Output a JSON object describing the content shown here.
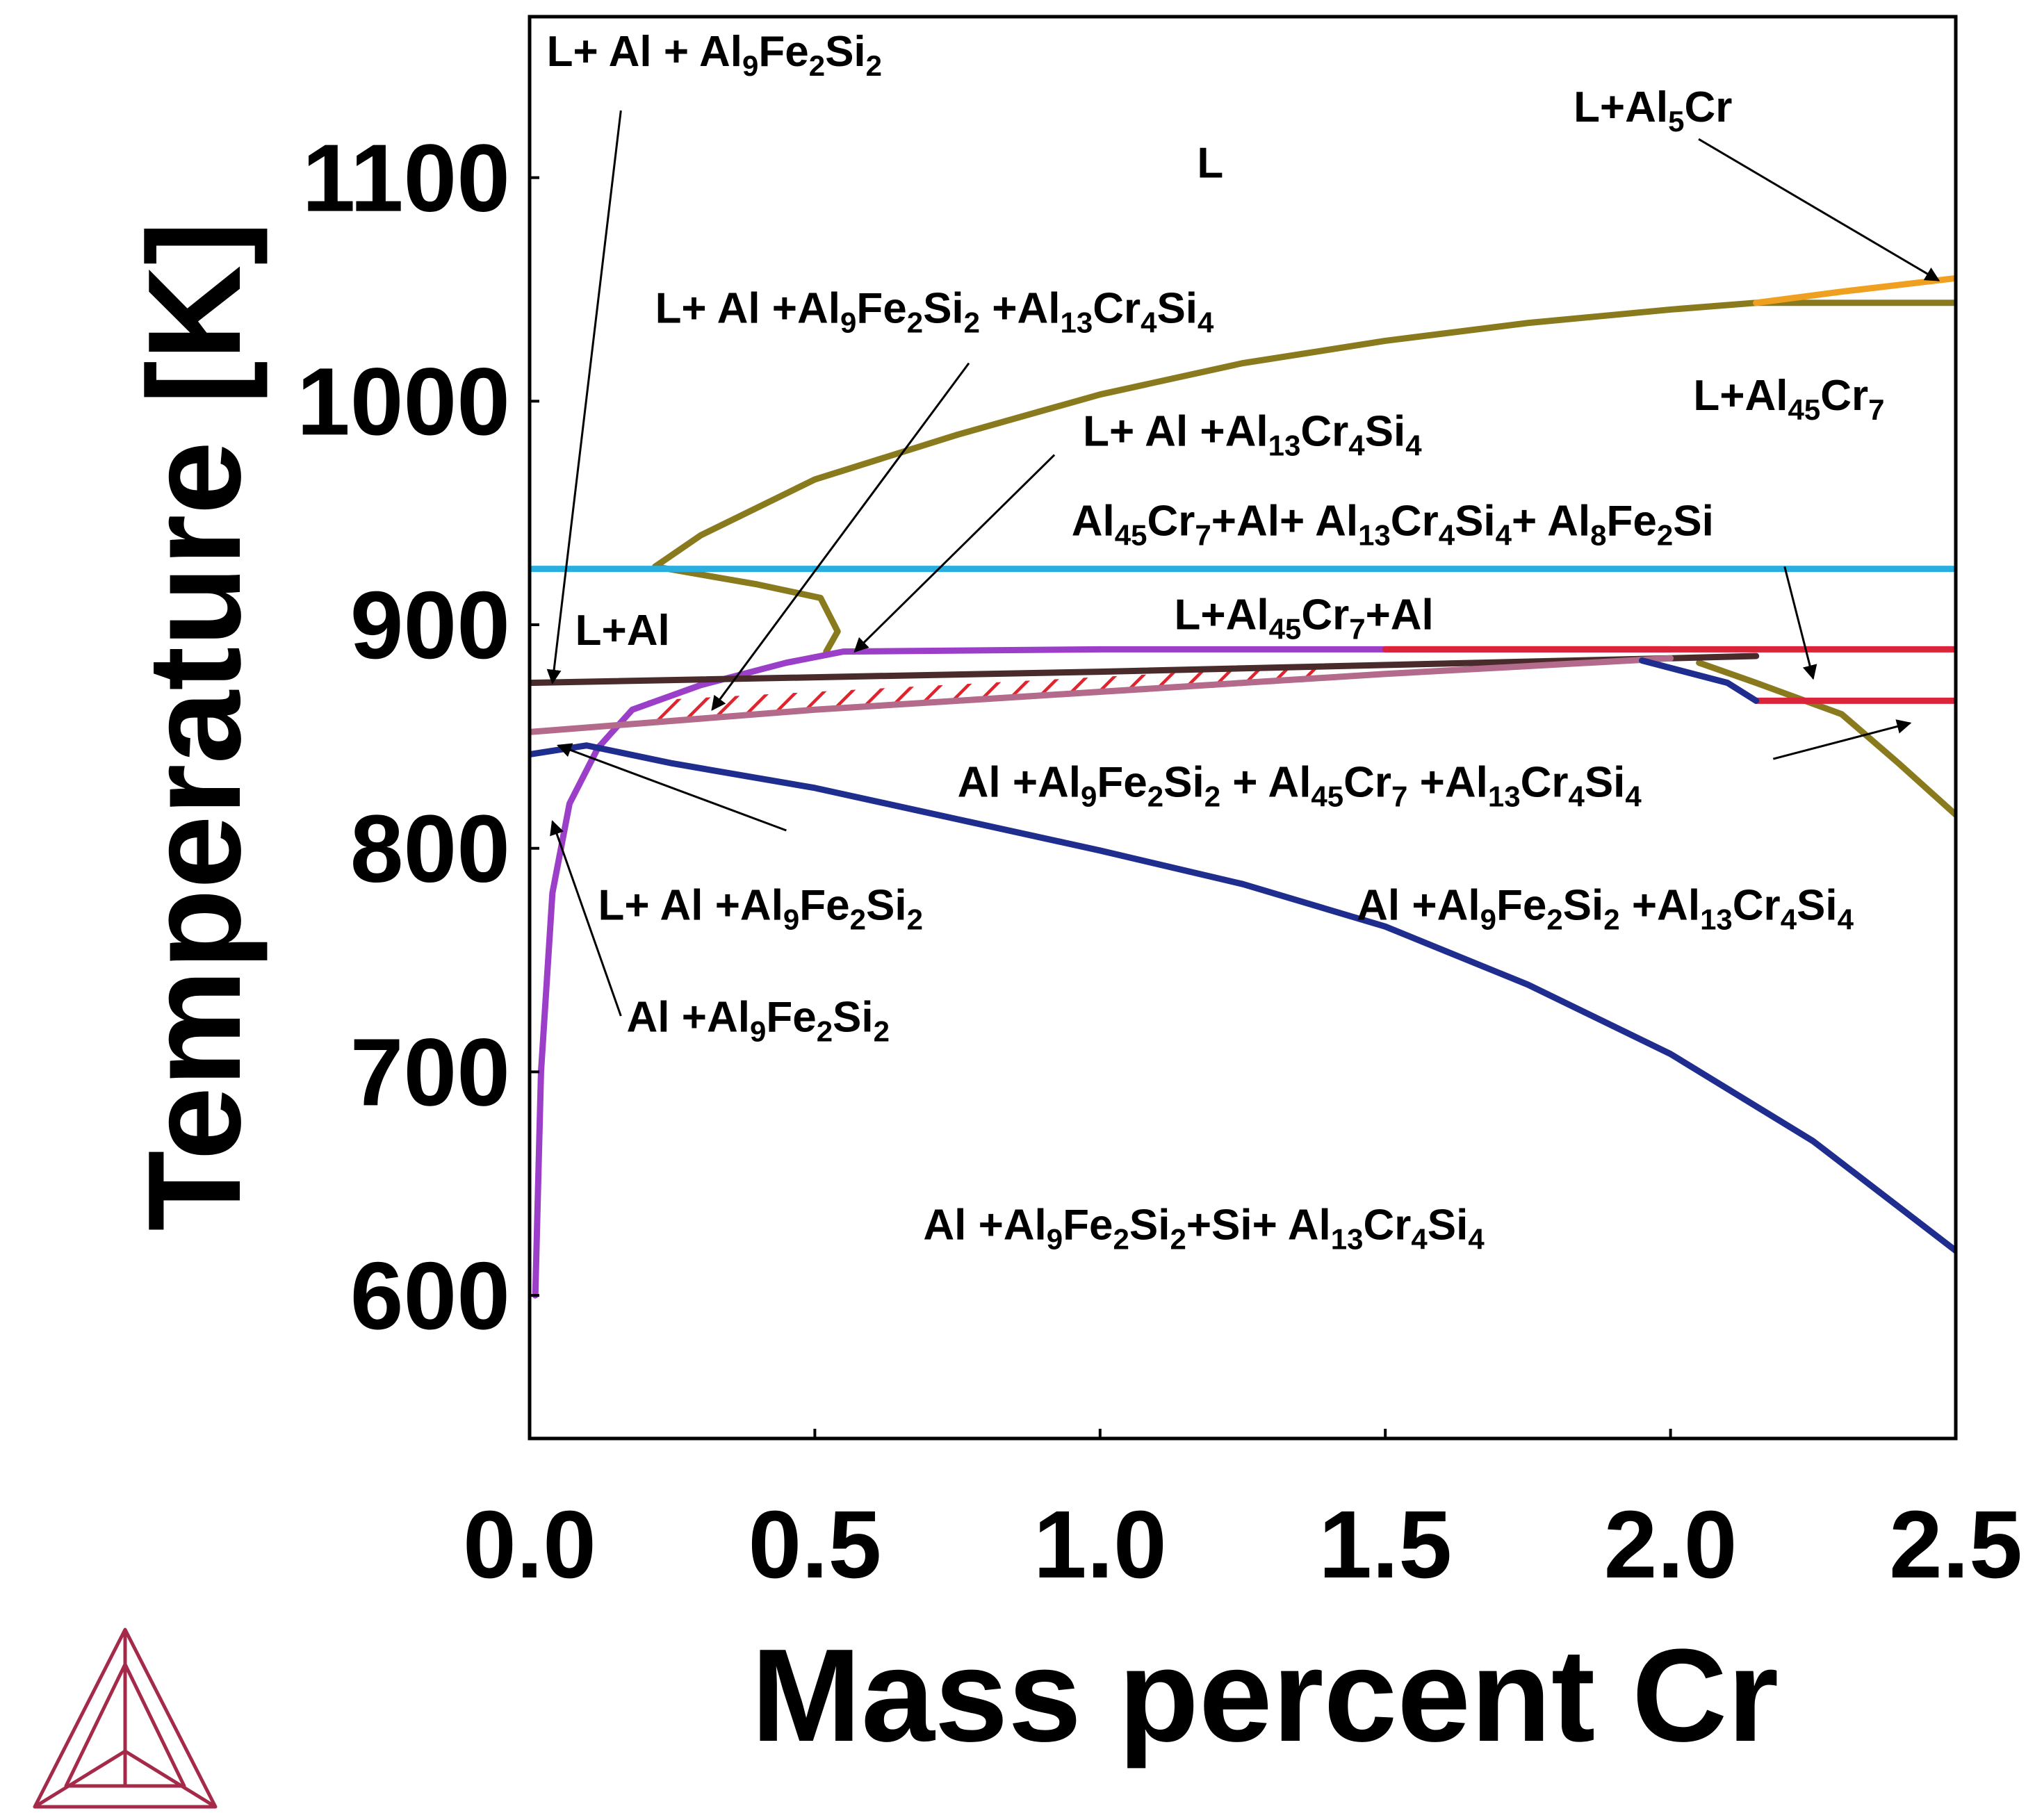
{
  "chart_data": {
    "type": "line",
    "title": "",
    "xlabel": "Mass percent Cr",
    "ylabel": "Temperature [K]",
    "xlim": [
      0.0,
      2.5
    ],
    "ylim": [
      536,
      1172
    ],
    "xticks": [
      "0.0",
      "0.5",
      "1.0",
      "1.5",
      "2.0",
      "2.5"
    ],
    "yticks": [
      "600",
      "700",
      "800",
      "900",
      "1000",
      "1100"
    ],
    "grid": false,
    "legend": "none",
    "series": [
      {
        "name": "liquidus-L-Al45Cr7",
        "color": "#8a7a1e",
        "points": [
          [
            0.22,
            926
          ],
          [
            0.3,
            940
          ],
          [
            0.5,
            965
          ],
          [
            0.75,
            985
          ],
          [
            1.0,
            1003
          ],
          [
            1.25,
            1017
          ],
          [
            1.5,
            1027
          ],
          [
            1.75,
            1035
          ],
          [
            2.0,
            1041
          ],
          [
            2.15,
            1044
          ],
          [
            2.5,
            1044
          ]
        ]
      },
      {
        "name": "liquidus-L-Al5Cr",
        "color": "#f0a020",
        "points": [
          [
            2.15,
            1044
          ],
          [
            2.3,
            1049
          ],
          [
            2.5,
            1055
          ]
        ]
      },
      {
        "name": "liquidus-lower-branch",
        "color": "#8a7a1e",
        "points": [
          [
            0.22,
            926
          ],
          [
            0.4,
            918
          ],
          [
            0.51,
            912
          ],
          [
            0.54,
            897
          ],
          [
            0.52,
            888
          ]
        ]
      },
      {
        "name": "solvus-Al45Cr7-right",
        "color": "#8a7a1e",
        "points": [
          [
            2.05,
            883
          ],
          [
            2.15,
            874
          ],
          [
            2.3,
            860
          ],
          [
            2.4,
            838
          ],
          [
            2.5,
            815
          ]
        ]
      },
      {
        "name": "isotherm-Al8Fe2Si",
        "color": "#29aee0",
        "points": [
          [
            0.0,
            925
          ],
          [
            2.5,
            925
          ]
        ]
      },
      {
        "name": "purple-boundary",
        "color": "#9b3ec8",
        "points": [
          [
            0.01,
            600
          ],
          [
            0.02,
            700
          ],
          [
            0.04,
            780
          ],
          [
            0.07,
            820
          ],
          [
            0.12,
            845
          ],
          [
            0.18,
            862
          ],
          [
            0.3,
            873
          ],
          [
            0.45,
            883
          ],
          [
            0.55,
            888
          ],
          [
            1.0,
            889
          ],
          [
            1.5,
            889
          ],
          [
            2.0,
            889
          ]
        ]
      },
      {
        "name": "red-upper",
        "color": "#d9243a",
        "points": [
          [
            1.5,
            889
          ],
          [
            2.5,
            889
          ]
        ]
      },
      {
        "name": "red-lower",
        "color": "#d9243a",
        "points": [
          [
            2.15,
            866
          ],
          [
            2.5,
            866
          ]
        ]
      },
      {
        "name": "brown-line",
        "color": "#4a2b2b",
        "points": [
          [
            0.0,
            874
          ],
          [
            1.0,
            879
          ],
          [
            2.0,
            885
          ],
          [
            2.15,
            886
          ]
        ]
      },
      {
        "name": "pink-line",
        "color": "#b46a8a",
        "points": [
          [
            0.0,
            852
          ],
          [
            0.5,
            862
          ],
          [
            1.0,
            870
          ],
          [
            1.5,
            878
          ],
          [
            2.0,
            885
          ]
        ]
      },
      {
        "name": "blue-solvus",
        "color": "#1e2d8e",
        "points": [
          [
            0.0,
            842
          ],
          [
            0.1,
            846
          ],
          [
            0.25,
            838
          ],
          [
            0.5,
            827
          ],
          [
            0.75,
            813
          ],
          [
            1.0,
            799
          ],
          [
            1.25,
            784
          ],
          [
            1.5,
            765
          ],
          [
            1.75,
            739
          ],
          [
            2.0,
            708
          ],
          [
            2.25,
            669
          ],
          [
            2.5,
            620
          ]
        ]
      },
      {
        "name": "blue-upper-right",
        "color": "#1e2d8e",
        "points": [
          [
            1.95,
            884
          ],
          [
            2.1,
            874
          ],
          [
            2.15,
            866
          ]
        ]
      }
    ],
    "hatched_region": {
      "color": "#e0242e",
      "x_range": [
        0.2,
        1.4
      ],
      "y_range": [
        856,
        882
      ]
    },
    "annotations": [
      {
        "id": "L",
        "parts": [
          [
            "L",
            ""
          ]
        ],
        "x": 1.17,
        "y": 1100
      },
      {
        "id": "l-al-al9fe2si2-top",
        "parts": [
          [
            "L+ Al + Al",
            ""
          ],
          [
            "9",
            "sub"
          ],
          [
            "Fe",
            ""
          ],
          [
            "2",
            "sub"
          ],
          [
            "Si",
            ""
          ],
          [
            "2",
            "sub"
          ]
        ],
        "x": 0.03,
        "y": 1150,
        "arrow_to": [
          0.04,
          874
        ]
      },
      {
        "id": "l-al5cr",
        "parts": [
          [
            "L+Al",
            ""
          ],
          [
            "5",
            "sub"
          ],
          [
            "Cr",
            ""
          ]
        ],
        "x": 1.83,
        "y": 1125,
        "arrow_to": [
          2.47,
          1054
        ]
      },
      {
        "id": "l-al-al9fe2si2-al13cr4si4",
        "parts": [
          [
            "L+ Al +Al",
            ""
          ],
          [
            "9",
            "sub"
          ],
          [
            "Fe",
            ""
          ],
          [
            "2",
            "sub"
          ],
          [
            "Si",
            ""
          ],
          [
            "2",
            "sub"
          ],
          [
            " +Al",
            ""
          ],
          [
            "13",
            "sub"
          ],
          [
            "Cr",
            ""
          ],
          [
            "4",
            "sub"
          ],
          [
            "Si",
            ""
          ],
          [
            "4",
            "sub"
          ]
        ],
        "x": 0.22,
        "y": 1035,
        "arrow_to": [
          0.32,
          862
        ]
      },
      {
        "id": "l-al45cr7",
        "parts": [
          [
            "L+Al",
            ""
          ],
          [
            "45",
            "sub"
          ],
          [
            "Cr",
            ""
          ],
          [
            "7",
            "sub"
          ]
        ],
        "x": 2.04,
        "y": 996
      },
      {
        "id": "l-al-al13cr4si4",
        "parts": [
          [
            "L+ Al +Al",
            ""
          ],
          [
            "13",
            "sub"
          ],
          [
            "Cr",
            ""
          ],
          [
            "4",
            "sub"
          ],
          [
            "Si",
            ""
          ],
          [
            "4",
            "sub"
          ]
        ],
        "x": 0.97,
        "y": 980,
        "arrow_to": [
          0.57,
          888
        ]
      },
      {
        "id": "al45cr7-al-al13cr4si4-al8fe2si",
        "parts": [
          [
            "Al",
            ""
          ],
          [
            "45",
            "sub"
          ],
          [
            "Cr",
            ""
          ],
          [
            "7",
            "sub"
          ],
          [
            "+Al+ Al",
            ""
          ],
          [
            "13",
            "sub"
          ],
          [
            "Cr",
            ""
          ],
          [
            "4",
            "sub"
          ],
          [
            "Si",
            ""
          ],
          [
            "4",
            "sub"
          ],
          [
            "+ Al",
            ""
          ],
          [
            "8",
            "sub"
          ],
          [
            "Fe",
            ""
          ],
          [
            "2",
            "sub"
          ],
          [
            "Si",
            ""
          ]
        ],
        "x": 0.95,
        "y": 940,
        "arrow_to": [
          2.25,
          876
        ]
      },
      {
        "id": "l-al",
        "parts": [
          [
            "L+Al",
            ""
          ]
        ],
        "x": 0.08,
        "y": 891
      },
      {
        "id": "l-al45cr7-al",
        "parts": [
          [
            "L+Al",
            ""
          ],
          [
            "45",
            "sub"
          ],
          [
            "Cr",
            ""
          ],
          [
            "7",
            "sub"
          ],
          [
            "+Al",
            ""
          ]
        ],
        "x": 1.13,
        "y": 898
      },
      {
        "id": "al-al9fe2si2-al45cr7-al13cr4si4",
        "parts": [
          [
            "Al +Al",
            ""
          ],
          [
            "9",
            "sub"
          ],
          [
            "Fe",
            ""
          ],
          [
            "2",
            "sub"
          ],
          [
            "Si",
            ""
          ],
          [
            "2",
            "sub"
          ],
          [
            " + Al",
            ""
          ],
          [
            "45",
            "sub"
          ],
          [
            "Cr",
            ""
          ],
          [
            "7",
            "sub"
          ],
          [
            " +Al",
            ""
          ],
          [
            "13",
            "sub"
          ],
          [
            "Cr",
            ""
          ],
          [
            "4",
            "sub"
          ],
          [
            "Si",
            ""
          ],
          [
            "4",
            "sub"
          ]
        ],
        "x": 0.75,
        "y": 823,
        "arrow_to": [
          2.42,
          856
        ]
      },
      {
        "id": "l-al-al9fe2si2",
        "parts": [
          [
            "L+ Al +Al",
            ""
          ],
          [
            "9",
            "sub"
          ],
          [
            "Fe",
            ""
          ],
          [
            "2",
            "sub"
          ],
          [
            "Si",
            ""
          ],
          [
            "2",
            "sub"
          ]
        ],
        "x": 0.12,
        "y": 768,
        "arrow_to": [
          0.05,
          846
        ]
      },
      {
        "id": "al-al9fe2si2-al13cr4si4",
        "parts": [
          [
            "Al +Al",
            ""
          ],
          [
            "9",
            "sub"
          ],
          [
            "Fe",
            ""
          ],
          [
            "2",
            "sub"
          ],
          [
            "Si",
            ""
          ],
          [
            "2",
            "sub"
          ],
          [
            " +Al",
            ""
          ],
          [
            "13",
            "sub"
          ],
          [
            "Cr",
            ""
          ],
          [
            "4",
            "sub"
          ],
          [
            "Si",
            ""
          ],
          [
            "4",
            "sub"
          ]
        ],
        "x": 1.45,
        "y": 768
      },
      {
        "id": "al-al9fe2si2",
        "parts": [
          [
            "Al +Al",
            ""
          ],
          [
            "9",
            "sub"
          ],
          [
            "Fe",
            ""
          ],
          [
            "2",
            "sub"
          ],
          [
            "Si",
            ""
          ],
          [
            "2",
            "sub"
          ]
        ],
        "x": 0.17,
        "y": 718,
        "arrow_to": [
          0.04,
          812
        ]
      },
      {
        "id": "al-al9fe2si2-si-al13cr4si4",
        "parts": [
          [
            "Al +Al",
            ""
          ],
          [
            "9",
            "sub"
          ],
          [
            "Fe",
            ""
          ],
          [
            "2",
            "sub"
          ],
          [
            "Si",
            ""
          ],
          [
            "2",
            "sub"
          ],
          [
            "+Si+ Al",
            ""
          ],
          [
            "13",
            "sub"
          ],
          [
            "Cr",
            ""
          ],
          [
            "4",
            "sub"
          ],
          [
            "Si",
            ""
          ],
          [
            "4",
            "sub"
          ]
        ],
        "x": 0.69,
        "y": 625
      }
    ]
  },
  "logo": {
    "name": "Thermo-Calc",
    "color": "#a52a4a"
  }
}
